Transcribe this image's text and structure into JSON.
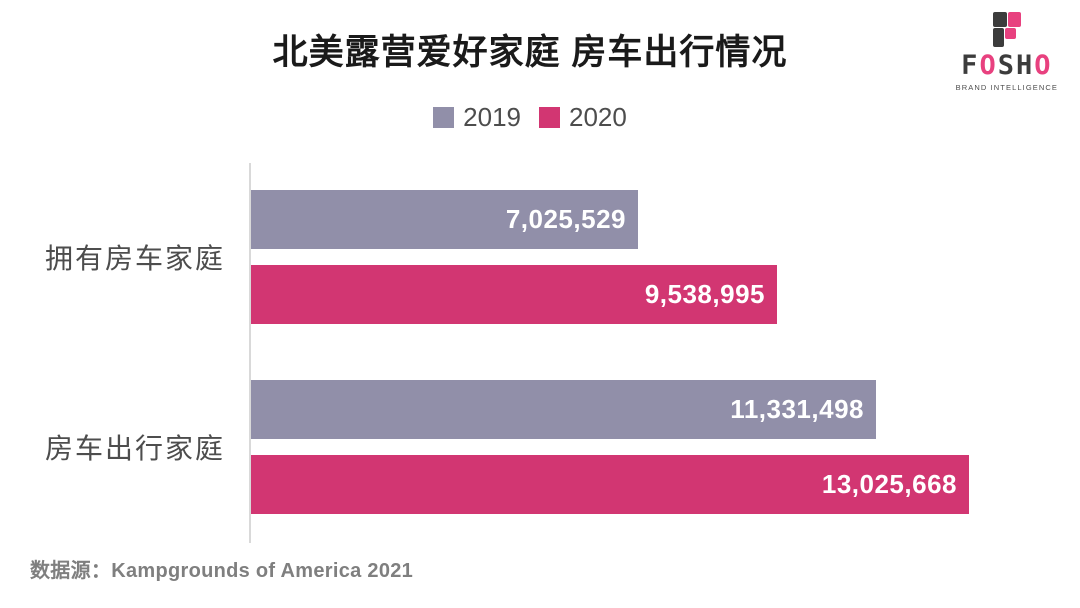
{
  "title": "北美露营爱好家庭 房车出行情况",
  "source_label": "数据源：Kampgrounds of America 2021",
  "logo": {
    "letters": [
      "F",
      "O",
      "S",
      "H",
      "O"
    ],
    "subtitle": "BRAND INTELLIGENCE",
    "dark_color": "#3c3c3c",
    "pink_color": "#e8417f"
  },
  "colors": {
    "series_2019": "#918fa9",
    "series_2020": "#d23672",
    "axis_line": "#d9d9d9",
    "title_text": "#1a1a1a",
    "label_text": "#4d4d4d",
    "value_text": "#ffffff",
    "source_text": "#7f7f7f"
  },
  "chart_data": {
    "type": "bar",
    "orientation": "horizontal",
    "title": "北美露营爱好家庭 房车出行情况",
    "categories": [
      "拥有房车家庭",
      "房车出行家庭"
    ],
    "series": [
      {
        "name": "2019",
        "color": "#918fa9",
        "values": [
          7025529,
          11331498
        ],
        "labels": [
          "7,025,529",
          "11,331,498"
        ]
      },
      {
        "name": "2020",
        "color": "#d23672",
        "values": [
          9538995,
          13025668
        ],
        "labels": [
          "9,538,995",
          "13,025,668"
        ]
      }
    ],
    "xlim": [
      0,
      14000000
    ],
    "grid": false,
    "legend_position": "top",
    "value_labels_inside_bars": true,
    "source": "数据源：Kampgrounds of America 2021"
  }
}
